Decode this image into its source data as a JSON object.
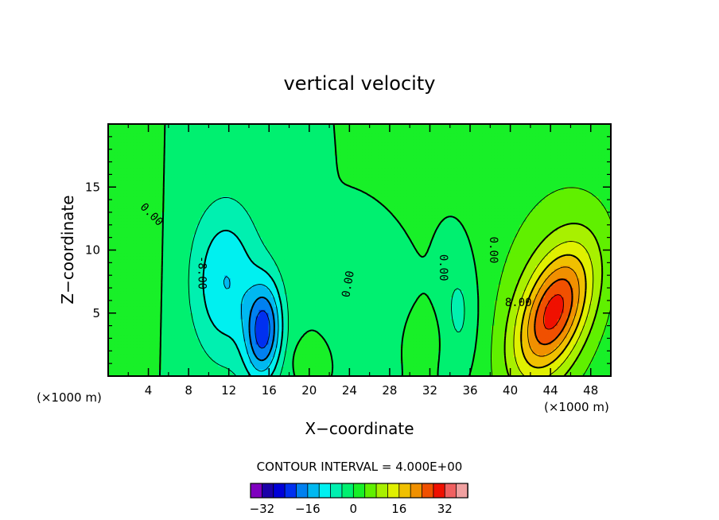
{
  "chart_data": {
    "type": "contour",
    "title": "vertical velocity",
    "xlabel": "X−coordinate",
    "ylabel": "Z−coordinate",
    "x_unit_left": "(×1000 m)",
    "x_unit_right": "(×1000 m)",
    "xlim": [
      0,
      50
    ],
    "ylim": [
      0,
      20
    ],
    "x_ticks": [
      4,
      8,
      12,
      16,
      20,
      24,
      28,
      32,
      36,
      40,
      44,
      48
    ],
    "y_ticks": [
      5,
      10,
      15
    ],
    "contour_interval_text": "CONTOUR INTERVAL = 4.000E+00",
    "contour_interval": 4,
    "negative_contours": "dashed",
    "contour_labels": [
      {
        "text": "0.00",
        "x": 4.3,
        "y": 12.8,
        "angle": 45
      },
      {
        "text": "-8.00",
        "x": 9.3,
        "y": 8.2,
        "angle": 90
      },
      {
        "text": "0.00",
        "x": 23.9,
        "y": 7.3,
        "angle": -80
      },
      {
        "text": "0.00",
        "x": 33.3,
        "y": 8.6,
        "angle": 90
      },
      {
        "text": "0.00",
        "x": 38.3,
        "y": 10.0,
        "angle": 90
      },
      {
        "text": "8.00",
        "x": 40.8,
        "y": 5.8,
        "angle": 0
      }
    ],
    "features": [
      {
        "kind": "max",
        "x": 44.3,
        "y": 5.0,
        "peak": 24,
        "sx": 2.3,
        "sy": 3.6,
        "tilt": 0.35
      },
      {
        "kind": "broad_positive",
        "x": 44.0,
        "y": 7.0,
        "peak": 6,
        "sx": 5.0,
        "sy": 8.0,
        "tilt": 0.15
      },
      {
        "kind": "min",
        "x": 15.5,
        "y": 3.5,
        "peak": -20,
        "sx": 1.3,
        "sy": 2.8,
        "tilt": 0.05
      },
      {
        "kind": "min",
        "x": 11.7,
        "y": 7.5,
        "peak": -12,
        "sx": 2.5,
        "sy": 4.5,
        "tilt": 0
      },
      {
        "kind": "min",
        "x": 34.9,
        "y": 5.0,
        "peak": -6,
        "sx": 1.4,
        "sy": 3.5,
        "tilt": 0
      },
      {
        "kind": "min",
        "x": 26.8,
        "y": 5.0,
        "peak": -3,
        "sx": 2.3,
        "sy": 2.5,
        "tilt": 0
      },
      {
        "kind": "max",
        "x": 0.8,
        "y": 8.5,
        "peak": 4,
        "sx": 2.2,
        "sy": 4.5,
        "tilt": 0
      },
      {
        "kind": "max",
        "x": 31.3,
        "y": 3.3,
        "peak": 2.5,
        "sx": 1.6,
        "sy": 1.6,
        "tilt": 0
      },
      {
        "kind": "max",
        "x": 19.8,
        "y": 1.3,
        "peak": 3,
        "sx": 1.0,
        "sy": 0.9,
        "tilt": 0
      }
    ],
    "colorbar": {
      "tick_labels": [
        "−32",
        "−16",
        "0",
        "16",
        "32"
      ],
      "tick_values": [
        -32,
        -16,
        0,
        16,
        32
      ],
      "levels": [
        -36,
        -32,
        -28,
        -24,
        -20,
        -16,
        -12,
        -8,
        -4,
        0,
        4,
        8,
        12,
        16,
        20,
        24,
        28,
        32,
        36
      ],
      "colors": [
        "#7f00bf",
        "#1b00a8",
        "#0000d8",
        "#0030f0",
        "#0080f0",
        "#00b8f0",
        "#00f0f0",
        "#00f0b0",
        "#00f070",
        "#18f028",
        "#60f000",
        "#a8f000",
        "#e0f000",
        "#f0c000",
        "#f09000",
        "#f05000",
        "#f01000",
        "#f06060",
        "#f0a0a0"
      ]
    }
  }
}
